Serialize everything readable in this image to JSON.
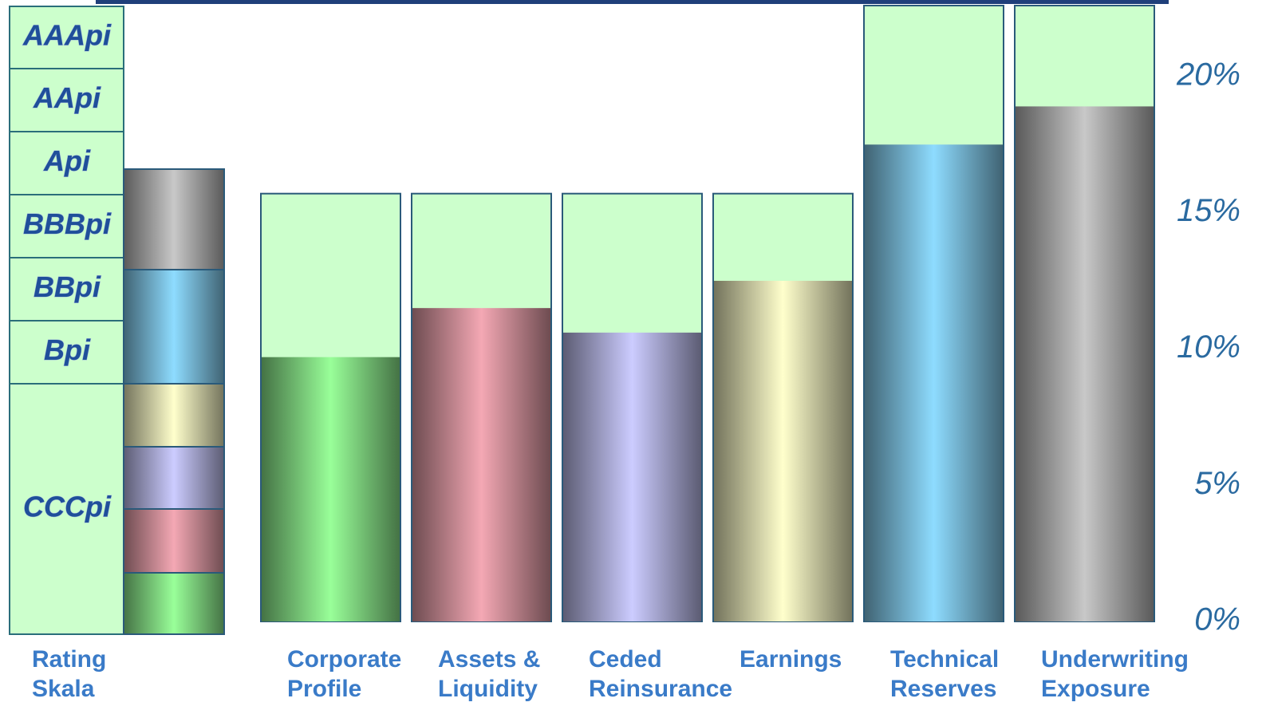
{
  "chart_data": {
    "type": "bar",
    "categories": [
      "Corporate Profile",
      "Assets & Liquidity",
      "Ceded Reinsurance",
      "Earnings",
      "Technical Reserves",
      "Underwriting Exposure"
    ],
    "values": [
      9.7,
      11.5,
      10.6,
      12.5,
      17.5,
      18.9
    ],
    "capacity": [
      15.7,
      15.7,
      15.7,
      15.7,
      22.6,
      22.6
    ],
    "colors": [
      "#99ff99",
      "#f4a8b4",
      "#ccccff",
      "#ffffcc",
      "#8edcff",
      "#c8c8c8"
    ],
    "capacity_color": "#ccffcc",
    "ylim": [
      0,
      22.6
    ],
    "yticks": [
      {
        "value": 0,
        "label": "0%"
      },
      {
        "value": 5,
        "label": "5%"
      },
      {
        "value": 10,
        "label": "10%"
      },
      {
        "value": 15,
        "label": "15%"
      },
      {
        "value": 20,
        "label": "20%"
      }
    ],
    "rating_scale": {
      "label": "Rating Skala",
      "ratings": [
        "AAApi",
        "AApi",
        "Api",
        "BBBpi",
        "BBpi",
        "Bpi",
        "CCCpi"
      ]
    }
  }
}
